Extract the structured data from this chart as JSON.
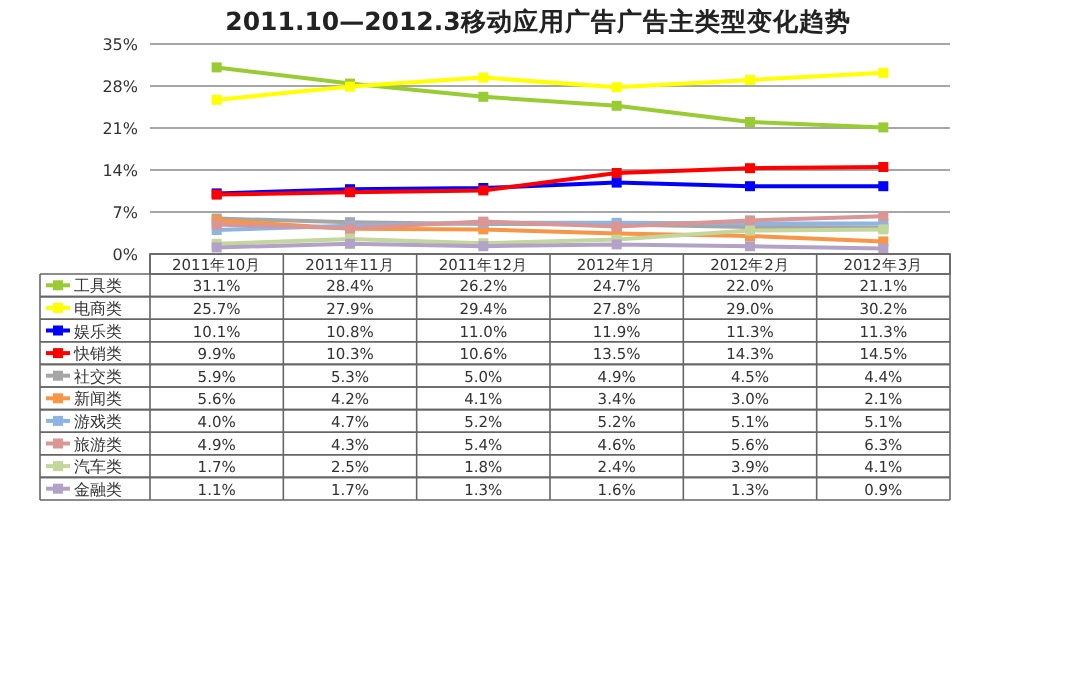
{
  "chart_data": {
    "type": "line",
    "title": "2011.10—2012.3移动应用广告广告主类型变化趋势",
    "categories": [
      "2011年10月",
      "2011年11月",
      "2011年12月",
      "2012年1月",
      "2012年2月",
      "2012年3月"
    ],
    "ylim": [
      0,
      35
    ],
    "yticks": [
      {
        "value": 0,
        "label": "0%"
      },
      {
        "value": 7,
        "label": "7%"
      },
      {
        "value": 14,
        "label": "14%"
      },
      {
        "value": 21,
        "label": "21%"
      },
      {
        "value": 28,
        "label": "28%"
      },
      {
        "value": 35,
        "label": "35%"
      }
    ],
    "grid": "y",
    "marker": "square",
    "legend": "bottom",
    "series": [
      {
        "name": "工具类",
        "color": "#99cc33",
        "values": [
          31.1,
          28.4,
          26.2,
          24.7,
          22.0,
          21.1
        ],
        "value_labels": [
          "31.1%",
          "28.4%",
          "26.2%",
          "24.7%",
          "22.0%",
          "21.1%"
        ]
      },
      {
        "name": "电商类",
        "color": "#ffff00",
        "values": [
          25.7,
          27.9,
          29.4,
          27.8,
          29.0,
          30.2
        ],
        "value_labels": [
          "25.7%",
          "27.9%",
          "29.4%",
          "27.8%",
          "29.0%",
          "30.2%"
        ]
      },
      {
        "name": "娱乐类",
        "color": "#0000ff",
        "values": [
          10.1,
          10.8,
          11.0,
          11.9,
          11.3,
          11.3
        ],
        "value_labels": [
          "10.1%",
          "10.8%",
          "11.0%",
          "11.9%",
          "11.3%",
          "11.3%"
        ]
      },
      {
        "name": "快销类",
        "color": "#ff0000",
        "values": [
          9.9,
          10.3,
          10.6,
          13.5,
          14.3,
          14.5
        ],
        "value_labels": [
          "9.9%",
          "10.3%",
          "10.6%",
          "13.5%",
          "14.3%",
          "14.5%"
        ]
      },
      {
        "name": "社交类",
        "color": "#a6a6a6",
        "values": [
          5.9,
          5.3,
          5.0,
          4.9,
          4.5,
          4.4
        ],
        "value_labels": [
          "5.9%",
          "5.3%",
          "5.0%",
          "4.9%",
          "4.5%",
          "4.4%"
        ]
      },
      {
        "name": "新闻类",
        "color": "#f79646",
        "values": [
          5.6,
          4.2,
          4.1,
          3.4,
          3.0,
          2.1
        ],
        "value_labels": [
          "5.6%",
          "4.2%",
          "4.1%",
          "3.4%",
          "3.0%",
          "2.1%"
        ]
      },
      {
        "name": "游戏类",
        "color": "#8db4e2",
        "values": [
          4.0,
          4.7,
          5.2,
          5.2,
          5.1,
          5.1
        ],
        "value_labels": [
          "4.0%",
          "4.7%",
          "5.2%",
          "5.2%",
          "5.1%",
          "5.1%"
        ]
      },
      {
        "name": "旅游类",
        "color": "#d99694",
        "values": [
          4.9,
          4.3,
          5.4,
          4.6,
          5.6,
          6.3
        ],
        "value_labels": [
          "4.9%",
          "4.3%",
          "5.4%",
          "4.6%",
          "5.6%",
          "6.3%"
        ]
      },
      {
        "name": "汽车类",
        "color": "#c3d69b",
        "values": [
          1.7,
          2.5,
          1.8,
          2.4,
          3.9,
          4.1
        ],
        "value_labels": [
          "1.7%",
          "2.5%",
          "1.8%",
          "2.4%",
          "3.9%",
          "4.1%"
        ]
      },
      {
        "name": "金融类",
        "color": "#b3a2c7",
        "values": [
          1.1,
          1.7,
          1.3,
          1.6,
          1.3,
          0.9
        ],
        "value_labels": [
          "1.1%",
          "1.7%",
          "1.3%",
          "1.6%",
          "1.3%",
          "0.9%"
        ]
      }
    ]
  }
}
